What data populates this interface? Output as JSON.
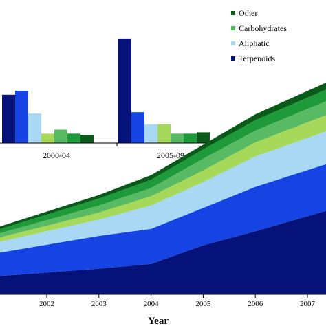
{
  "colors": {
    "terpenoids": "#05127a",
    "aromatic": "#1644e4",
    "aliphatic": "#a9d8f5",
    "lightgreen": "#a6d95a",
    "carbohydrates": "#58bb64",
    "darkgreen": "#1e9a3b",
    "other": "#0a5a1a"
  },
  "legend": [
    {
      "label": "Other",
      "color": "#0a5a1a"
    },
    {
      "label": "Carbohydrates",
      "color": "#58bb64"
    },
    {
      "label": "Aliphatic",
      "color": "#a9d8f5"
    },
    {
      "label": "Terpenoids",
      "color": "#05127a"
    }
  ],
  "chart_data": [
    {
      "type": "bar",
      "categories": [
        "2000-04",
        "2005-09"
      ],
      "series": [
        {
          "values": [
            36,
            78
          ],
          "color": "#05127a"
        },
        {
          "values": [
            39,
            23
          ],
          "color": "#1644e4"
        },
        {
          "values": [
            22,
            14
          ],
          "color": "#a9d8f5"
        },
        {
          "values": [
            7,
            14
          ],
          "color": "#a6d95a"
        },
        {
          "values": [
            10,
            7
          ],
          "color": "#58bb64"
        },
        {
          "values": [
            7,
            7
          ],
          "color": "#1e9a3b"
        },
        {
          "values": [
            6,
            8
          ],
          "color": "#0a5a1a"
        }
      ],
      "ylim": [
        0,
        80
      ]
    },
    {
      "type": "area",
      "xlabel": "Year",
      "x": [
        2000.6,
        2003,
        2004,
        2005,
        2006,
        2007.4
      ],
      "x_ticks": [
        "2002",
        "2003",
        "2004",
        "2005",
        "2006",
        "2007"
      ],
      "stacked": true,
      "series": [
        {
          "name": "Terpenoids",
          "values": [
            7,
            11,
            13,
            21,
            27,
            36
          ],
          "color": "#05127a"
        },
        {
          "name": "",
          "values": [
            9,
            14,
            15,
            16,
            19,
            20
          ],
          "color": "#1644e4"
        },
        {
          "name": "Aliphatic",
          "values": [
            4,
            7,
            10,
            11,
            13,
            14
          ],
          "color": "#a9d8f5"
        },
        {
          "name": "",
          "values": [
            1.5,
            3,
            4,
            5,
            6,
            7
          ],
          "color": "#a6d95a"
        },
        {
          "name": "Carbohydrates",
          "values": [
            1.5,
            3,
            3.5,
            5,
            5,
            6
          ],
          "color": "#58bb64"
        },
        {
          "name": "",
          "values": [
            1.5,
            3,
            3.5,
            4,
            4.5,
            5
          ],
          "color": "#1e9a3b"
        },
        {
          "name": "Other",
          "values": [
            1,
            1.5,
            2,
            2,
            2.5,
            3
          ],
          "color": "#0a5a1a"
        }
      ],
      "ylim": [
        0,
        100
      ]
    }
  ]
}
